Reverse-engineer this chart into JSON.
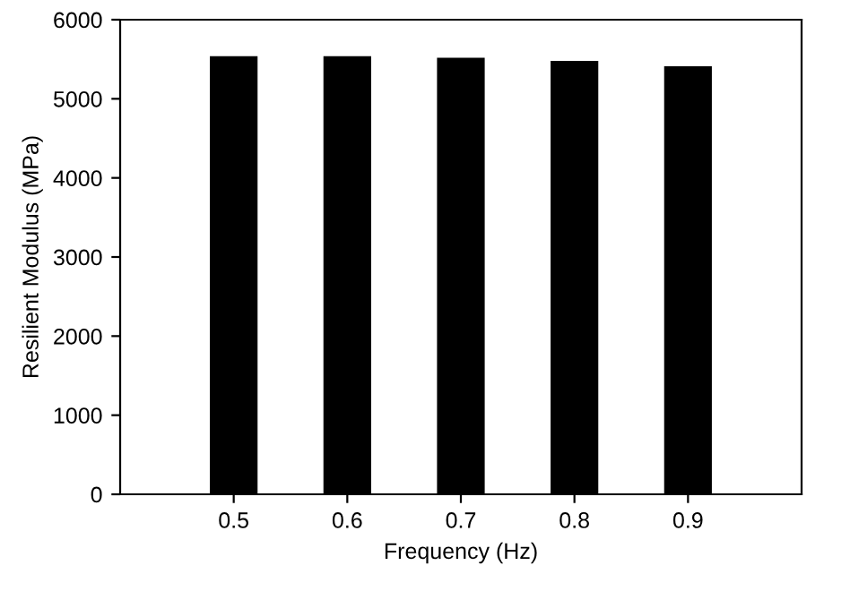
{
  "chart_data": {
    "type": "bar",
    "xlabel": "Frequency (Hz)",
    "ylabel": "Resilient Modulus (MPa)",
    "categories": [
      "0.5",
      "0.6",
      "0.7",
      "0.8",
      "0.9"
    ],
    "values": [
      5540,
      5540,
      5520,
      5480,
      5410
    ],
    "color": "#000000",
    "ylim": [
      0,
      6000
    ],
    "yticks": [
      0,
      1000,
      2000,
      3000,
      4000,
      5000,
      6000
    ],
    "grid": false
  }
}
